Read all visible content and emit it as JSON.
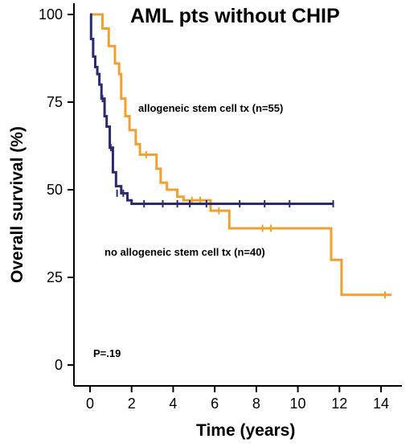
{
  "chart_data": {
    "type": "line",
    "subtype": "kaplan-meier step",
    "title": "AML pts without CHIP",
    "xlabel": "Time (years)",
    "ylabel": "Overall survival (%)",
    "xlim": [
      -0.5,
      15
    ],
    "ylim": [
      -3,
      102
    ],
    "xticks": [
      "0",
      "2",
      "4",
      "6",
      "8",
      "10",
      "12",
      "14"
    ],
    "yticks": [
      "0",
      "25",
      "50",
      "75",
      "100"
    ],
    "grid": false,
    "annotations": [
      {
        "text": "allogeneic stem cell tx (n=55)"
      },
      {
        "text": "no allogeneic stem cell tx (n=40)"
      },
      {
        "text": "P=.19"
      }
    ],
    "series": [
      {
        "color": "#f0a030",
        "label_text": "allogeneic stem cell tx (n=55)",
        "x": [
          0,
          0.6,
          0.9,
          1.2,
          1.4,
          1.5,
          1.7,
          1.9,
          2.2,
          2.4,
          3.2,
          3.4,
          3.7,
          4.2,
          4.5,
          5.8,
          6.7,
          11.6,
          12.1,
          14.5
        ],
        "y": [
          100,
          96,
          91,
          86,
          83,
          76,
          71,
          67,
          63,
          60,
          56,
          52,
          50,
          48,
          47,
          44,
          39,
          30,
          20,
          20
        ],
        "censored": [
          [
            2.7,
            60
          ],
          [
            4.9,
            47
          ],
          [
            5.3,
            47
          ],
          [
            6.2,
            44
          ],
          [
            8.3,
            39
          ],
          [
            8.7,
            39
          ],
          [
            14.2,
            20
          ]
        ]
      },
      {
        "color": "#2b2a6e",
        "label_text": "no allogeneic stem cell tx (n=40)",
        "x": [
          0,
          0.05,
          0.15,
          0.25,
          0.35,
          0.45,
          0.55,
          0.7,
          0.8,
          0.95,
          1.1,
          1.25,
          1.5,
          1.6,
          1.8,
          2.0,
          11.7
        ],
        "y": [
          100,
          93,
          88,
          85,
          83,
          80,
          76,
          71,
          68,
          62,
          55,
          51,
          49,
          49,
          47,
          46,
          46
        ],
        "censored": [
          [
            0.6,
            76
          ],
          [
            1.0,
            62
          ],
          [
            1.3,
            49
          ],
          [
            1.6,
            49
          ],
          [
            2.6,
            46
          ],
          [
            3.5,
            46
          ],
          [
            4.2,
            46
          ],
          [
            4.8,
            46
          ],
          [
            5.6,
            46
          ],
          [
            7.2,
            46
          ],
          [
            8.4,
            46
          ],
          [
            9.6,
            46
          ],
          [
            11.7,
            46
          ]
        ]
      }
    ]
  }
}
